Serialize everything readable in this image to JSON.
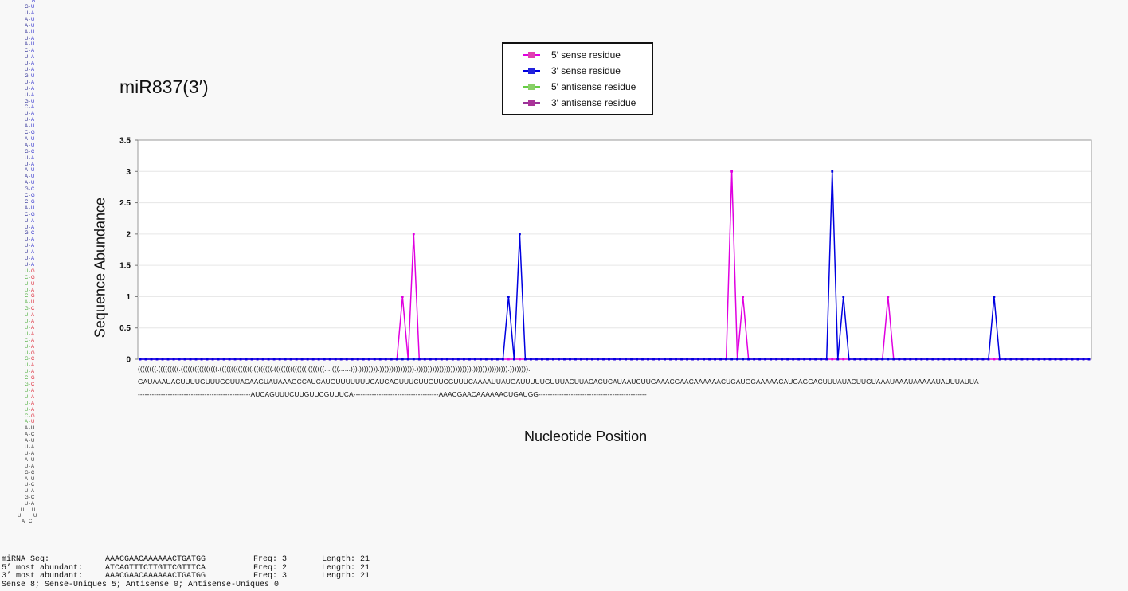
{
  "chart_data": {
    "type": "line",
    "title": "miR837(3′)",
    "xlabel": "Nucleotide Position",
    "ylabel": "Sequence Abundance",
    "ylim": [
      0,
      3.5
    ],
    "yticks": [
      "0",
      "0.5",
      "1",
      "1.5",
      "2",
      "2.5",
      "3",
      "3.5"
    ],
    "grid": true,
    "legend_position": "top-center",
    "x_count": 171,
    "series": [
      {
        "name": "5′ sense residue",
        "color": "#e000e0",
        "marker_color": "#e040b0",
        "points": [
          [
            47,
            1
          ],
          [
            49,
            2
          ],
          [
            106,
            3
          ],
          [
            108,
            1
          ],
          [
            134,
            1
          ]
        ]
      },
      {
        "name": "3′ sense residue",
        "color": "#0000e0",
        "marker_color": "#2222dd",
        "points": [
          [
            66,
            1
          ],
          [
            68,
            2
          ],
          [
            124,
            3
          ],
          [
            126,
            1
          ],
          [
            153,
            1
          ]
        ]
      },
      {
        "name": "5′ antisense residue",
        "color": "#66cc44",
        "marker_color": "#88d066",
        "points": []
      },
      {
        "name": "3′ antisense residue",
        "color": "#993399",
        "marker_color": "#aa3399",
        "points": []
      }
    ],
    "sequence_rows": [
      "((((((((.(((((((((.((((((((((((((((.((((((((((((((.((((((((.((((((((((((((.(((((((....(((......))).)))))))).))))))))))))))).)))))))))))))))))))))))).))))))))))))))).)))))))).",
      "GAUAAAUACUUUUGUUUGCUUACAAGUAUAAAGCCAUCAUGUUUUUUUCAUCAGUUUCUUGUUCGUUUCAAAAUUAUGAUUUUUGUUUACUUACACUCAUAAUCUUGAAACGAACAAAAAACUGAUGGAAAAACAUGAGGACUUUAUACUUGUAAAUAAAUAAAAAUAUUUAUUA",
      "-------------------------------------------------AUCAGUUUCUUGUUCGUUUCA-------------------------------------AAACGAACAAAAAACUGAUGG-----------------------------------------------"
    ]
  },
  "hairpin": {
    "left_color": "#1a1a8c",
    "right_color": "#2a2acc",
    "mature_5p_color": "#44aa33",
    "mature_3p_color": "#dd2233",
    "loop_color": "#222222",
    "top_base": "A",
    "pairs": [
      [
        "G",
        "U"
      ],
      [
        "U",
        "A"
      ],
      [
        "A",
        "U"
      ],
      [
        "A",
        "U"
      ],
      [
        "A",
        "U"
      ],
      [
        "U",
        "A"
      ],
      [
        "A",
        "U"
      ],
      [
        "C",
        "A"
      ],
      [
        "U",
        "A"
      ],
      [
        "U",
        "A"
      ],
      [
        "U",
        "A"
      ],
      [
        "G",
        "U"
      ],
      [
        "U",
        "A"
      ],
      [
        "U",
        "A"
      ],
      [
        "U",
        "A"
      ],
      [
        "G",
        "U"
      ],
      [
        "C",
        "A"
      ],
      [
        "U",
        "A"
      ],
      [
        "U",
        "A"
      ],
      [
        "A",
        "U"
      ],
      [
        "C",
        "G"
      ],
      [
        "A",
        "U"
      ],
      [
        "A",
        "U"
      ],
      [
        "G",
        "C"
      ],
      [
        "U",
        "A"
      ],
      [
        "U",
        "A"
      ],
      [
        "A",
        "U"
      ],
      [
        "A",
        "U"
      ],
      [
        "A",
        "U"
      ],
      [
        "G",
        "C"
      ],
      [
        "C",
        "G"
      ],
      [
        "C",
        "G"
      ],
      [
        "A",
        "U"
      ],
      [
        "C",
        "G"
      ],
      [
        "U",
        "A"
      ],
      [
        "U",
        "A"
      ],
      [
        "G",
        "C"
      ],
      [
        "U",
        "A"
      ],
      [
        "U",
        "A"
      ],
      [
        "U",
        "A"
      ],
      [
        "U",
        "A"
      ],
      [
        "U",
        "A"
      ],
      [
        "U",
        "G"
      ],
      [
        "C",
        "G"
      ],
      [
        "U",
        "U"
      ],
      [
        "U",
        "A"
      ],
      [
        "C",
        "G"
      ],
      [
        "A",
        "U"
      ],
      [
        "G",
        "C"
      ],
      [
        "U",
        "A"
      ],
      [
        "U",
        "A"
      ],
      [
        "U",
        "A"
      ],
      [
        "U",
        "A"
      ],
      [
        "C",
        "A"
      ],
      [
        "U",
        "A"
      ],
      [
        "U",
        "G"
      ],
      [
        "G",
        "C"
      ],
      [
        "U",
        "A"
      ],
      [
        "U",
        "A"
      ],
      [
        "C",
        "G"
      ],
      [
        "G",
        "C"
      ],
      [
        "U",
        "A"
      ],
      [
        "U",
        "A"
      ],
      [
        "U",
        "A"
      ],
      [
        "U",
        "A"
      ],
      [
        "C",
        "G"
      ],
      [
        "A",
        "U"
      ],
      [
        "A",
        "U"
      ],
      [
        "A",
        "C"
      ],
      [
        "A",
        "U"
      ],
      [
        "U",
        "A"
      ],
      [
        "U",
        "A"
      ],
      [
        "A",
        "U"
      ],
      [
        "U",
        "A"
      ],
      [
        "G",
        "C"
      ],
      [
        "A",
        "U"
      ],
      [
        "U",
        "C"
      ],
      [
        "U",
        "A"
      ],
      [
        "G",
        "C"
      ],
      [
        "U",
        "A"
      ]
    ],
    "loop": [
      "U",
      "U",
      "U",
      "U",
      "A",
      "C"
    ]
  },
  "stats": {
    "rows": [
      {
        "label": "miRNA Seq:",
        "seq": "AAACGAACAAAAAACTGATGG",
        "freq": "Freq: 3",
        "len": "Length: 21"
      },
      {
        "label": "5’ most abundant:",
        "seq": "ATCAGTTTCTTGTTCGTTTCA",
        "freq": "Freq: 2",
        "len": "Length: 21"
      },
      {
        "label": "3’ most abundant:",
        "seq": "AAACGAACAAAAAACTGATGG",
        "freq": "Freq: 3",
        "len": "Length: 21"
      }
    ],
    "summary": "Sense 8; Sense-Uniques 5; Antisense 0; Antisense-Uniques 0"
  }
}
